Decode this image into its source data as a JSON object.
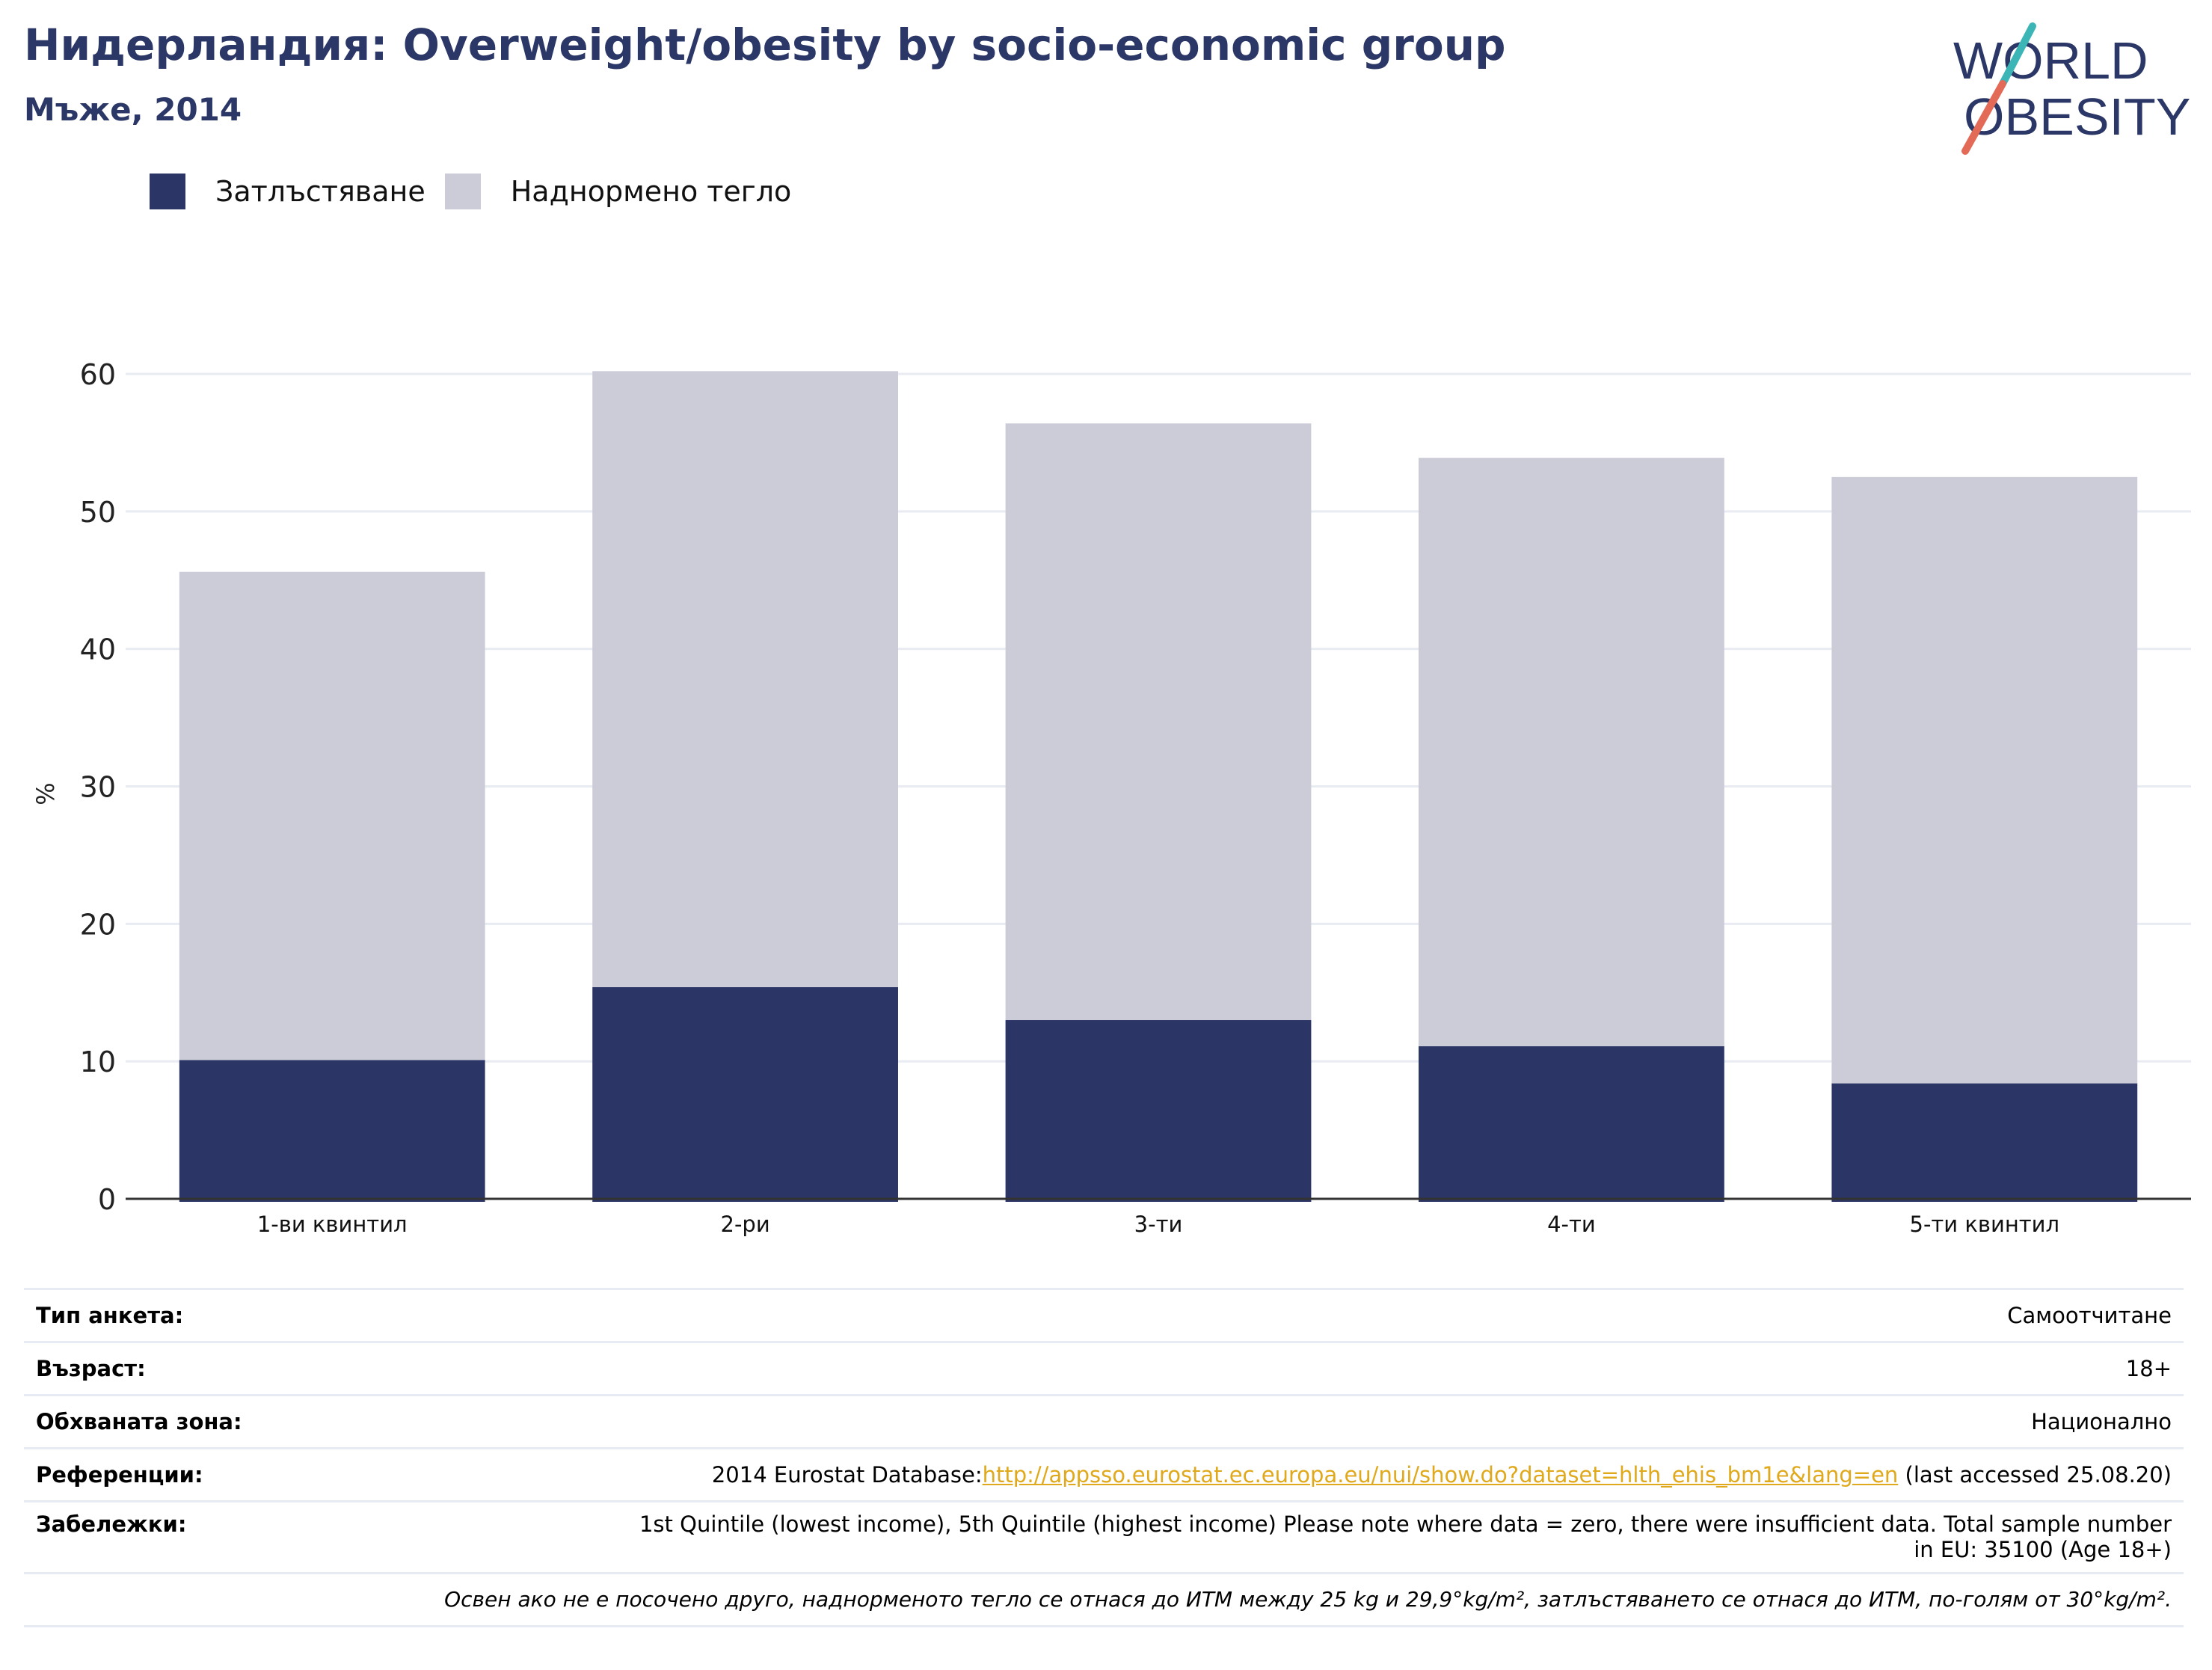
{
  "header": {
    "title": "Нидерландия: Overweight/obesity by socio-economic group",
    "subtitle": "Мъже, 2014"
  },
  "logo": {
    "line1": "WORLD",
    "line2": "OBESITY"
  },
  "colors": {
    "obesity": "#2b3666",
    "overweight": "#cbccd8",
    "title": "#2b3766",
    "link": "#e0a91b",
    "grid": "#e8ebf2",
    "axis": "#333333"
  },
  "chart_data": {
    "type": "bar",
    "stacked": true,
    "categories": [
      "1-ви квинтил",
      "2-ри",
      "3-ти",
      "4-ти",
      "5-ти квинтил"
    ],
    "series": [
      {
        "name": "Затлъстяване",
        "values": [
          10.1,
          15.4,
          13.0,
          11.1,
          8.4
        ]
      },
      {
        "name": "Наднормено тегло",
        "values": [
          35.5,
          44.8,
          43.4,
          42.8,
          44.1
        ]
      }
    ],
    "totals": [
      45.6,
      60.2,
      56.4,
      53.9,
      52.5
    ],
    "ylabel": "%",
    "ylim": [
      0,
      60
    ],
    "yticks": [
      0,
      10,
      20,
      30,
      40,
      50,
      60
    ],
    "grid": true,
    "legend_position": "top-left"
  },
  "meta": {
    "survey_type": {
      "label": "Тип анкета:",
      "value": "Самоотчитане"
    },
    "age": {
      "label": "Възраст:",
      "value": "18+"
    },
    "area": {
      "label": "Обхваната зона:",
      "value": "Национално"
    },
    "references": {
      "label": "Референции:",
      "prefix": "2014 Eurostat Database:",
      "url": "http://appsso.eurostat.ec.europa.eu/nui/show.do?dataset=hlth_ehis_bm1e&lang=en",
      "suffix": " (last accessed 25.08.20)"
    },
    "notes": {
      "label": "Забележки:",
      "line1": "1st Quintile (lowest income), 5th Quintile (highest income) Please note where data = zero, there were insufficient data. Total sample number",
      "line2": "in EU: 35100 (Age 18+)"
    },
    "footnote": "Освен ако не е посочено друго, наднорменото тегло се отнася до ИТМ между 25 kg и 29,9°kg/m², затлъстяването се отнася до ИТМ, по-голям от 30°kg/m²."
  }
}
